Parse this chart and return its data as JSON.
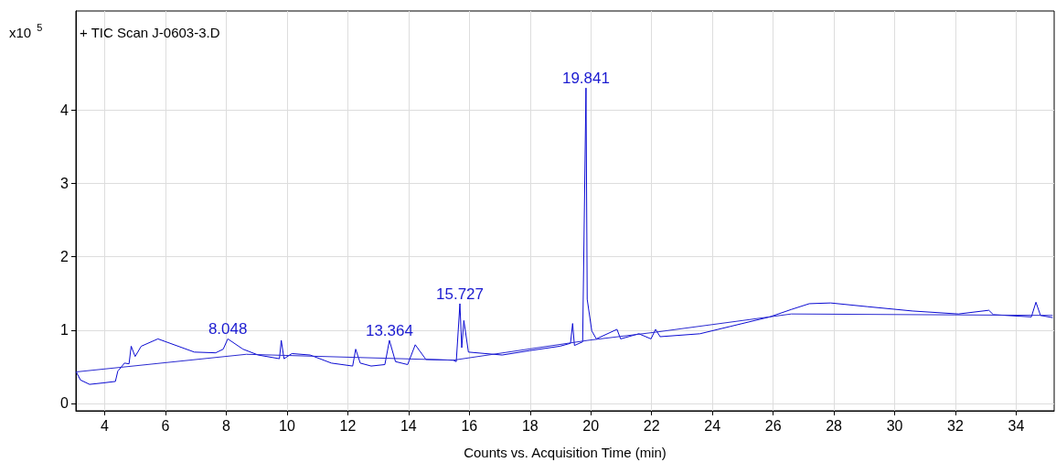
{
  "chart_data": {
    "type": "line",
    "title": "+ TIC Scan J-0603-3.D",
    "xlabel": "Counts vs. Acquisition Time (min)",
    "ylabel": "x10$^{5}$",
    "xlim": [
      3.05,
      35.25
    ],
    "ylim": [
      -0.1,
      5.35
    ],
    "xticks": [
      4,
      6,
      8,
      10,
      12,
      14,
      16,
      18,
      20,
      22,
      24,
      26,
      28,
      30,
      32,
      34
    ],
    "yticks": [
      0,
      1,
      2,
      3,
      4
    ],
    "grid": true,
    "series": [
      {
        "color": "#0a0ad2",
        "x": [
          3.06,
          3.2,
          3.5,
          3.95,
          4.35,
          4.43,
          4.65,
          4.8,
          4.87,
          5.0,
          5.2,
          5.75,
          6.15,
          6.95,
          7.65,
          7.9,
          8.05,
          8.55,
          9.05,
          9.75,
          9.81,
          9.9,
          10.16,
          10.76,
          11.46,
          12.16,
          12.26,
          12.41,
          12.77,
          13.22,
          13.37,
          13.57,
          13.97,
          14.22,
          14.57,
          15.47,
          15.57,
          15.69,
          15.75,
          15.82,
          15.97,
          17.08,
          17.98,
          18.98,
          19.33,
          19.4,
          19.46,
          19.73,
          19.84,
          19.88,
          20.03,
          20.18,
          20.86,
          20.98,
          21.58,
          21.98,
          22.13,
          22.28,
          23.59,
          24.59,
          25.89,
          26.59,
          27.19,
          27.89,
          29.09,
          30.59,
          32.1,
          33.1,
          33.25,
          34.5,
          34.65,
          34.8,
          35.2
        ],
        "values": [
          0.43,
          0.32,
          0.26,
          0.28,
          0.3,
          0.44,
          0.55,
          0.54,
          0.78,
          0.64,
          0.78,
          0.88,
          0.82,
          0.7,
          0.69,
          0.74,
          0.88,
          0.74,
          0.66,
          0.61,
          0.86,
          0.61,
          0.68,
          0.66,
          0.55,
          0.51,
          0.74,
          0.55,
          0.51,
          0.53,
          0.86,
          0.57,
          0.53,
          0.8,
          0.6,
          0.59,
          0.57,
          1.36,
          0.76,
          1.13,
          0.7,
          0.66,
          0.72,
          0.78,
          0.82,
          1.09,
          0.79,
          0.84,
          4.3,
          1.42,
          0.99,
          0.88,
          1.01,
          0.88,
          0.95,
          0.88,
          1.01,
          0.91,
          0.95,
          1.05,
          1.18,
          1.28,
          1.36,
          1.37,
          1.32,
          1.26,
          1.22,
          1.27,
          1.21,
          1.18,
          1.38,
          1.2,
          1.17
        ]
      },
      {
        "color": "#2a2ad0",
        "x": [
          3.06,
          8.66,
          15.47,
          19.9,
          22.1,
          26.6,
          35.2
        ],
        "values": [
          0.43,
          0.67,
          0.59,
          0.86,
          0.97,
          1.22,
          1.2
        ]
      }
    ],
    "annotations": [
      {
        "text": "8.048",
        "x": 8.05,
        "y": 0.88
      },
      {
        "text": "13.364",
        "x": 13.37,
        "y": 0.86
      },
      {
        "text": "15.727",
        "x": 15.69,
        "y": 1.36
      },
      {
        "text": "19.841",
        "x": 19.84,
        "y": 4.3
      }
    ]
  }
}
